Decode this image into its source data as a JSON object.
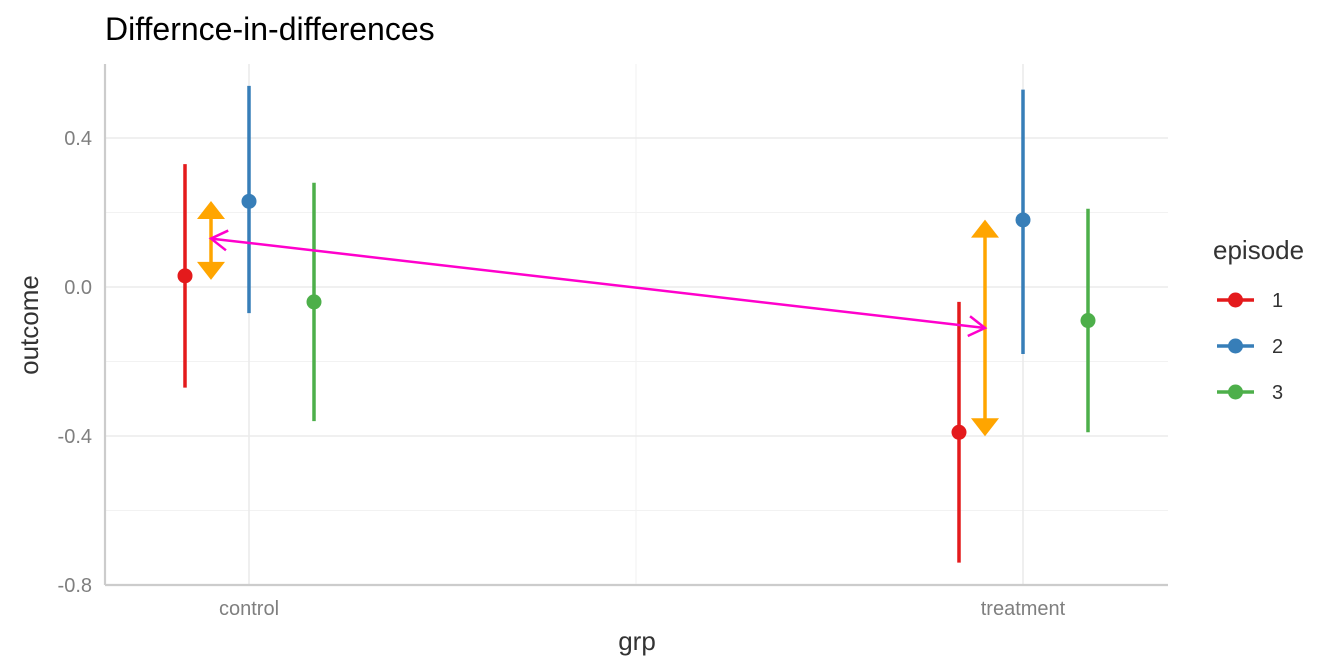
{
  "chart_data": {
    "type": "scatter",
    "title": "Differnce-in-differences",
    "xlabel": "grp",
    "ylabel": "outcome",
    "categories": [
      "control",
      "treatment"
    ],
    "ylim": [
      -0.8,
      0.6
    ],
    "yticks": [
      "-0.8",
      "-0.4",
      "0.0",
      "0.4"
    ],
    "grid": true,
    "legend": {
      "title": "episode",
      "position": "right",
      "entries": [
        {
          "label": "1",
          "color": "#e41a1c"
        },
        {
          "label": "2",
          "color": "#377eb8"
        },
        {
          "label": "3",
          "color": "#4daf4a"
        }
      ]
    },
    "series": [
      {
        "name": "1",
        "color": "#e41a1c",
        "points": [
          {
            "x": "control",
            "y": 0.03,
            "ymin": -0.27,
            "ymax": 0.33
          },
          {
            "x": "treatment",
            "y": -0.39,
            "ymin": -0.74,
            "ymax": -0.04
          }
        ]
      },
      {
        "name": "2",
        "color": "#377eb8",
        "points": [
          {
            "x": "control",
            "y": 0.23,
            "ymin": -0.07,
            "ymax": 0.54
          },
          {
            "x": "treatment",
            "y": 0.18,
            "ymin": -0.18,
            "ymax": 0.53
          }
        ]
      },
      {
        "name": "3",
        "color": "#4daf4a",
        "points": [
          {
            "x": "control",
            "y": -0.04,
            "ymin": -0.36,
            "ymax": 0.28
          },
          {
            "x": "treatment",
            "y": -0.09,
            "ymin": -0.39,
            "ymax": 0.21
          }
        ]
      }
    ],
    "annotations": [
      {
        "type": "double-arrow",
        "color": "#ffa500",
        "group": "control",
        "y_from": 0.22,
        "y_to": 0.03
      },
      {
        "type": "double-arrow",
        "color": "#ffa500",
        "group": "treatment",
        "y_from": 0.17,
        "y_to": -0.39
      },
      {
        "type": "double-arrow",
        "color": "#ff00cc",
        "from": {
          "x": "control",
          "y": 0.13
        },
        "to": {
          "x": "treatment",
          "y": -0.11
        }
      }
    ]
  }
}
